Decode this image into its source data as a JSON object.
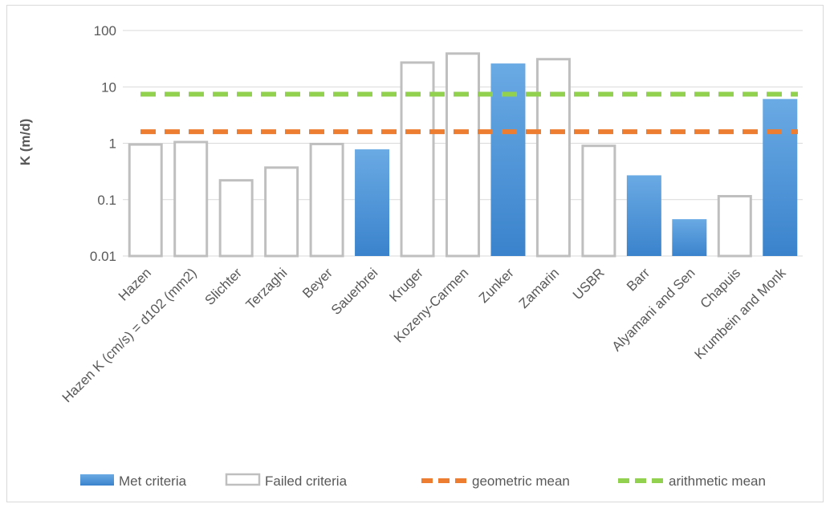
{
  "chart_data": {
    "type": "bar",
    "y_scale": "log",
    "ylim": [
      0.01,
      100
    ],
    "yticks": [
      0.01,
      0.1,
      1,
      10,
      100
    ],
    "ytick_labels": [
      "0.01",
      "0.1",
      "1",
      "10",
      "100"
    ],
    "ylabel": "K (m/d)",
    "xlabel": "",
    "grid": true,
    "legend_position": "bottom",
    "categories": [
      "Hazen",
      "Hazen K (cm/s) = d102 (mm2)",
      "Slichter",
      "Terzaghi",
      "Beyer",
      "Sauerbrei",
      "Kruger",
      "Kozeny-Carmen",
      "Zunker",
      "Zamarin",
      "USBR",
      "Barr",
      "Alyamani and Sen",
      "Chapuis",
      "Krumbein and Monk"
    ],
    "values": [
      0.95,
      1.05,
      0.22,
      0.37,
      0.97,
      0.78,
      27,
      39,
      26,
      31,
      0.9,
      0.27,
      0.045,
      0.115,
      6.1
    ],
    "met_criteria": [
      false,
      false,
      false,
      false,
      false,
      true,
      false,
      false,
      true,
      false,
      false,
      true,
      true,
      false,
      true
    ],
    "series": [
      {
        "name": "Met criteria",
        "kind": "bar",
        "color": "#4a8fd6"
      },
      {
        "name": "Failed criteria",
        "kind": "bar-outline",
        "color": "#bfbfbf"
      },
      {
        "name": "geometric mean",
        "kind": "dashed-line",
        "value": 1.6,
        "color": "#ed7d31"
      },
      {
        "name": "arithmetic mean",
        "kind": "dashed-line",
        "value": 7.4,
        "color": "#92d050"
      }
    ]
  }
}
